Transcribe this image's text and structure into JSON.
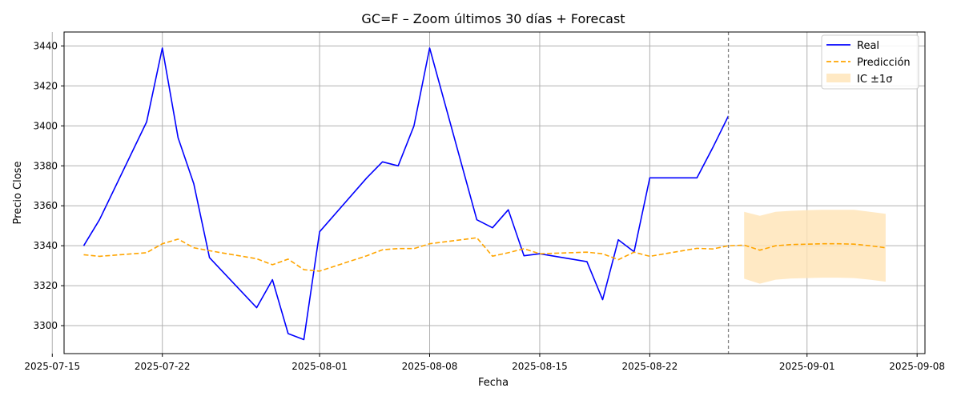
{
  "chart_data": {
    "type": "line",
    "title": "GC=F – Zoom últimos 30 días + Forecast",
    "xlabel": "Fecha",
    "ylabel": "Precio Close",
    "xlim": [
      "2025-07-15T18:00",
      "2025-09-08T12:00"
    ],
    "ylim": [
      3286,
      3447
    ],
    "x_ticks": [
      "2025-07-15",
      "2025-07-22",
      "2025-08-01",
      "2025-08-08",
      "2025-08-15",
      "2025-08-22",
      "2025-09-01",
      "2025-09-08"
    ],
    "y_ticks": [
      3300,
      3320,
      3340,
      3360,
      3380,
      3400,
      3420,
      3440
    ],
    "grid": true,
    "legend_position": "top-right",
    "forecast_start": "2025-08-27",
    "colors": {
      "real": "#0000ff",
      "prediction": "#ffa500",
      "ci_fill": "#ffe4b5",
      "forecast_line": "#808080",
      "grid": "#b0b0b0"
    },
    "series": [
      {
        "name": "Real",
        "style": "solid",
        "x": [
          "2025-07-17",
          "2025-07-18",
          "2025-07-21",
          "2025-07-22",
          "2025-07-23",
          "2025-07-24",
          "2025-07-25",
          "2025-07-28",
          "2025-07-29",
          "2025-07-30",
          "2025-07-31",
          "2025-08-01",
          "2025-08-04",
          "2025-08-05",
          "2025-08-06",
          "2025-08-07",
          "2025-08-08",
          "2025-08-11",
          "2025-08-12",
          "2025-08-13",
          "2025-08-14",
          "2025-08-15",
          "2025-08-18",
          "2025-08-19",
          "2025-08-20",
          "2025-08-21",
          "2025-08-22",
          "2025-08-25",
          "2025-08-26",
          "2025-08-27"
        ],
        "values": [
          3340,
          3353,
          3402,
          3439,
          3394,
          3371,
          3334,
          3309,
          3323,
          3296,
          3293,
          3347,
          3374,
          3382,
          3380,
          3400,
          3439,
          3353,
          3349,
          3358,
          3335,
          3336,
          3332,
          3313,
          3343,
          3337,
          3374,
          3374,
          3389,
          3405
        ]
      },
      {
        "name": "Predicción",
        "style": "dashed",
        "x": [
          "2025-07-17",
          "2025-07-18",
          "2025-07-21",
          "2025-07-22",
          "2025-07-23",
          "2025-07-24",
          "2025-07-25",
          "2025-07-28",
          "2025-07-29",
          "2025-07-30",
          "2025-07-31",
          "2025-08-01",
          "2025-08-04",
          "2025-08-05",
          "2025-08-06",
          "2025-08-07",
          "2025-08-08",
          "2025-08-11",
          "2025-08-12",
          "2025-08-13",
          "2025-08-14",
          "2025-08-15",
          "2025-08-18",
          "2025-08-19",
          "2025-08-20",
          "2025-08-21",
          "2025-08-22",
          "2025-08-25",
          "2025-08-26",
          "2025-08-27",
          "2025-08-28",
          "2025-08-29",
          "2025-08-30",
          "2025-08-31",
          "2025-09-01",
          "2025-09-02",
          "2025-09-03",
          "2025-09-04",
          "2025-09-05",
          "2025-09-06"
        ],
        "values": [
          3335.5,
          3334.7,
          3336.5,
          3341,
          3343.3,
          3339,
          3337.5,
          3333.5,
          3330.5,
          3333.3,
          3328,
          3327.3,
          3335,
          3338,
          3338.6,
          3338.6,
          3341,
          3344,
          3334.8,
          3336.5,
          3338.5,
          3336,
          3336.8,
          3336,
          3333,
          3336.8,
          3334.7,
          3338.7,
          3338.4,
          3340,
          3340.3,
          3337.8,
          3340,
          3340.6,
          3340.8,
          3341,
          3341,
          3340.8,
          3340,
          3339
        ]
      }
    ],
    "confidence_band": {
      "name": "IC ±1σ",
      "x": [
        "2025-08-28",
        "2025-08-29",
        "2025-08-30",
        "2025-08-31",
        "2025-09-01",
        "2025-09-02",
        "2025-09-03",
        "2025-09-04",
        "2025-09-05",
        "2025-09-06"
      ],
      "upper": [
        3357,
        3355,
        3357,
        3357.5,
        3357.8,
        3358,
        3358,
        3358,
        3357,
        3356
      ],
      "lower": [
        3323.5,
        3321,
        3323,
        3323.6,
        3323.8,
        3324,
        3324,
        3323.8,
        3323,
        3322
      ]
    }
  }
}
